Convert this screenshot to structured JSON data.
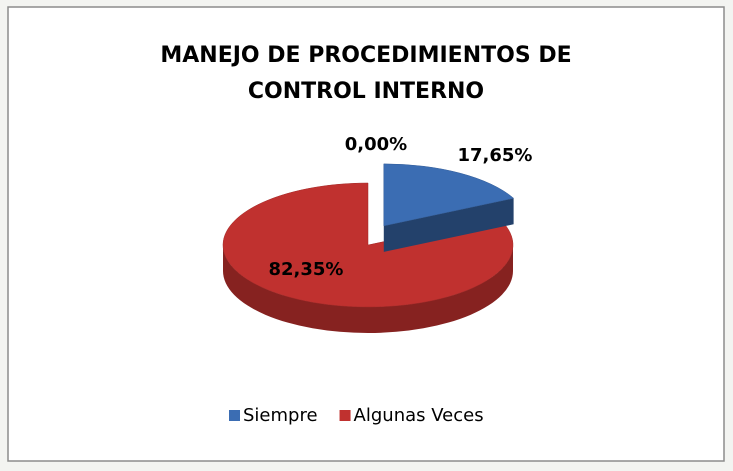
{
  "chart_data": {
    "type": "pie",
    "title": "MANEJO DE PROCEDIMIENTOS DE CONTROL INTERNO",
    "categories": [
      "Siempre",
      "Algunas Veces",
      null
    ],
    "values": [
      17.65,
      82.35,
      0
    ],
    "value_labels": [
      "17,65%",
      "82,35%",
      "0,00%"
    ],
    "colors": [
      "#3b6db3",
      "#c0312f",
      "#8aa848"
    ],
    "legend": "bottom"
  }
}
